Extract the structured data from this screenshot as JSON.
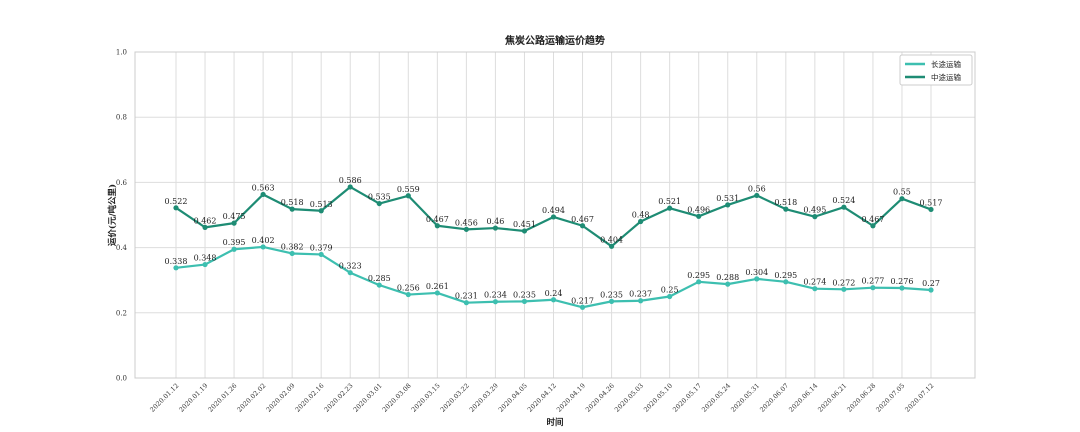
{
  "chart_data": {
    "type": "line",
    "title": "焦炭公路运输运价趋势",
    "xlabel": "时间",
    "ylabel": "运价(元/吨公里)",
    "ylim": [
      0,
      1.0
    ],
    "yticks": [
      "0.0",
      "0.2",
      "0.4",
      "0.6",
      "0.8",
      "1.0"
    ],
    "grid": true,
    "legend_position": "top-right",
    "categories": [
      "2020.01.12",
      "2020.01.19",
      "2020.01.26",
      "2020.02.02",
      "2020.02.09",
      "2020.02.16",
      "2020.02.23",
      "2020.03.01",
      "2020.03.08",
      "2020.03.15",
      "2020.03.22",
      "2020.03.29",
      "2020.04.05",
      "2020.04.12",
      "2020.04.19",
      "2020.04.26",
      "2020.05.03",
      "2020.05.10",
      "2020.05.17",
      "2020.05.24",
      "2020.05.31",
      "2020.06.07",
      "2020.06.14",
      "2020.06.21",
      "2020.06.28",
      "2020.07.05",
      "2020.07.12"
    ],
    "series": [
      {
        "name": "长途运输",
        "color": "#3dbfb0",
        "values": [
          0.338,
          0.348,
          0.395,
          0.402,
          0.382,
          0.379,
          0.323,
          0.285,
          0.256,
          0.261,
          0.231,
          0.234,
          0.235,
          0.24,
          0.217,
          0.235,
          0.237,
          0.25,
          0.295,
          0.288,
          0.304,
          0.295,
          0.274,
          0.272,
          0.277,
          0.276,
          0.27
        ]
      },
      {
        "name": "中途运输",
        "color": "#1e8c74",
        "values": [
          0.522,
          0.462,
          0.475,
          0.563,
          0.518,
          0.513,
          0.586,
          0.535,
          0.559,
          0.467,
          0.456,
          0.46,
          0.451,
          0.494,
          0.467,
          0.404,
          0.48,
          0.521,
          0.496,
          0.531,
          0.56,
          0.518,
          0.495,
          0.524,
          0.467,
          0.55,
          0.517
        ]
      }
    ],
    "data_labels": [
      [
        "0.338",
        "0.348",
        "0.395",
        "0.402",
        "0.382",
        "0.379",
        "0.323",
        "0.285",
        "0.256",
        "0.261",
        "0.231",
        "0.234",
        "0.235",
        "0.24",
        "0.217",
        "0.235",
        "0.237",
        "0.25",
        "0.295",
        "0.288",
        "0.304",
        "0.295",
        "0.274",
        "0.272",
        "0.277",
        "0.276",
        "0.27"
      ],
      [
        "0.522",
        "0.462",
        "0.475",
        "0.563",
        "0.518",
        "0.513",
        "0.586",
        "0.535",
        "0.559",
        "0.467",
        "0.456",
        "0.46",
        "0.451",
        "0.494",
        "0.467",
        "0.404",
        "0.48",
        "0.521",
        "0.496",
        "0.531",
        "0.56",
        "0.518",
        "0.495",
        "0.524",
        "0.467",
        "0.55",
        "0.517"
      ]
    ]
  }
}
